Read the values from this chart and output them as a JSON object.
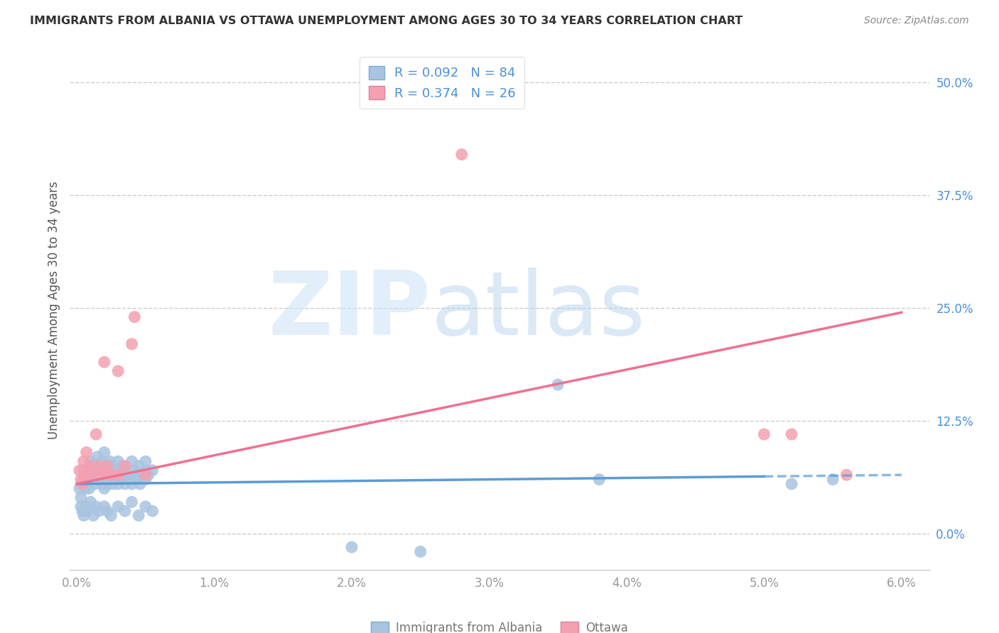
{
  "title": "IMMIGRANTS FROM ALBANIA VS OTTAWA UNEMPLOYMENT AMONG AGES 30 TO 34 YEARS CORRELATION CHART",
  "source": "Source: ZipAtlas.com",
  "ylabel": "Unemployment Among Ages 30 to 34 years",
  "xlim": [
    -0.0005,
    0.062
  ],
  "ylim": [
    -0.04,
    0.535
  ],
  "xtick_vals": [
    0.0,
    0.01,
    0.02,
    0.03,
    0.04,
    0.05,
    0.06
  ],
  "xtick_labels": [
    "0.0%",
    "1.0%",
    "2.0%",
    "3.0%",
    "4.0%",
    "5.0%",
    "6.0%"
  ],
  "ytick_vals": [
    0.0,
    0.125,
    0.25,
    0.375,
    0.5
  ],
  "ytick_labels": [
    "0.0%",
    "12.5%",
    "25.0%",
    "37.5%",
    "50.0%"
  ],
  "R_albania": 0.092,
  "N_albania": 84,
  "R_ottawa": 0.374,
  "N_ottawa": 26,
  "color_albania": "#a8c4e0",
  "color_ottawa": "#f4a0b0",
  "color_text_blue": "#4a90d9",
  "trendline_albania_color": "#5b9bd5",
  "trendline_ottawa_color": "#f07090",
  "watermark": "ZIPatlas",
  "background_color": "#ffffff",
  "grid_color": "#cccccc",
  "tick_color": "#999999",
  "legend_label_albania": "R = 0.092   N = 84",
  "legend_label_ottawa": "R = 0.374   N = 26",
  "bottom_legend_albania": "Immigrants from Albania",
  "bottom_legend_ottawa": "Ottawa",
  "albania_x": [
    0.0002,
    0.0003,
    0.0004,
    0.0005,
    0.0005,
    0.0006,
    0.0006,
    0.0007,
    0.0008,
    0.0008,
    0.0009,
    0.001,
    0.001,
    0.001,
    0.0012,
    0.0012,
    0.0013,
    0.0014,
    0.0015,
    0.0015,
    0.0016,
    0.0017,
    0.0018,
    0.0018,
    0.002,
    0.002,
    0.002,
    0.002,
    0.0022,
    0.0022,
    0.0023,
    0.0024,
    0.0025,
    0.0025,
    0.0026,
    0.0027,
    0.0028,
    0.003,
    0.003,
    0.003,
    0.0032,
    0.0032,
    0.0033,
    0.0035,
    0.0035,
    0.0036,
    0.0038,
    0.004,
    0.004,
    0.004,
    0.0042,
    0.0044,
    0.0045,
    0.0046,
    0.0048,
    0.005,
    0.005,
    0.005,
    0.0052,
    0.0055,
    0.0003,
    0.0004,
    0.0005,
    0.0007,
    0.0008,
    0.001,
    0.0012,
    0.0014,
    0.0016,
    0.002,
    0.0022,
    0.0025,
    0.003,
    0.0035,
    0.004,
    0.0045,
    0.005,
    0.0055,
    0.052,
    0.055,
    0.02,
    0.025,
    0.035,
    0.038
  ],
  "albania_y": [
    0.05,
    0.04,
    0.055,
    0.06,
    0.07,
    0.05,
    0.065,
    0.055,
    0.07,
    0.06,
    0.05,
    0.08,
    0.065,
    0.075,
    0.06,
    0.07,
    0.055,
    0.065,
    0.075,
    0.085,
    0.06,
    0.07,
    0.055,
    0.08,
    0.065,
    0.075,
    0.05,
    0.09,
    0.055,
    0.07,
    0.06,
    0.08,
    0.065,
    0.075,
    0.055,
    0.07,
    0.06,
    0.08,
    0.065,
    0.055,
    0.07,
    0.06,
    0.075,
    0.055,
    0.07,
    0.065,
    0.06,
    0.08,
    0.065,
    0.055,
    0.07,
    0.06,
    0.075,
    0.055,
    0.065,
    0.07,
    0.06,
    0.08,
    0.065,
    0.07,
    0.03,
    0.025,
    0.02,
    0.03,
    0.025,
    0.035,
    0.02,
    0.03,
    0.025,
    0.03,
    0.025,
    0.02,
    0.03,
    0.025,
    0.035,
    0.02,
    0.03,
    0.025,
    0.055,
    0.06,
    -0.015,
    -0.02,
    0.165,
    0.06
  ],
  "ottawa_x": [
    0.0002,
    0.0003,
    0.0004,
    0.0005,
    0.0006,
    0.0007,
    0.0008,
    0.001,
    0.0012,
    0.0014,
    0.0016,
    0.0018,
    0.002,
    0.002,
    0.0022,
    0.0025,
    0.003,
    0.003,
    0.0035,
    0.004,
    0.0042,
    0.005,
    0.052,
    0.056,
    0.028,
    0.05
  ],
  "ottawa_y": [
    0.07,
    0.06,
    0.055,
    0.08,
    0.065,
    0.09,
    0.07,
    0.075,
    0.065,
    0.11,
    0.075,
    0.065,
    0.19,
    0.07,
    0.075,
    0.065,
    0.18,
    0.065,
    0.075,
    0.21,
    0.24,
    0.065,
    0.11,
    0.065,
    0.42,
    0.11
  ],
  "trendline_albania_x0": 0.0,
  "trendline_albania_x1": 0.06,
  "trendline_albania_y0": 0.055,
  "trendline_albania_y1": 0.065,
  "trendline_albania_x_dash_start": 0.05,
  "trendline_ottawa_x0": 0.0,
  "trendline_ottawa_x1": 0.06,
  "trendline_ottawa_y0": 0.055,
  "trendline_ottawa_y1": 0.245
}
